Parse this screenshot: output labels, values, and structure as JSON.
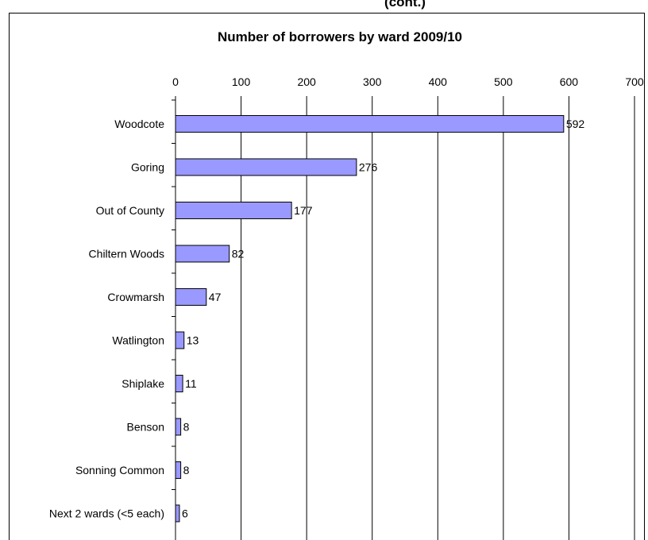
{
  "header_fragment": "(cont.)",
  "chart_data": {
    "type": "bar",
    "orientation": "horizontal",
    "title": "Number of borrowers by ward 2009/10",
    "xlabel": "",
    "ylabel": "",
    "xlim": [
      0,
      700
    ],
    "x_ticks": [
      0,
      100,
      200,
      300,
      400,
      500,
      600,
      700
    ],
    "x_axis_position": "top",
    "grid": true,
    "categories": [
      "Woodcote",
      "Goring",
      "Out of County",
      "Chiltern Woods",
      "Crowmarsh",
      "Watlington",
      "Shiplake",
      "Benson",
      "Sonning Common",
      "Next 2 wards (<5 each)"
    ],
    "values": [
      592,
      276,
      177,
      82,
      47,
      13,
      11,
      8,
      8,
      6
    ],
    "bar_color": "#9999ff",
    "data_labels": true
  }
}
